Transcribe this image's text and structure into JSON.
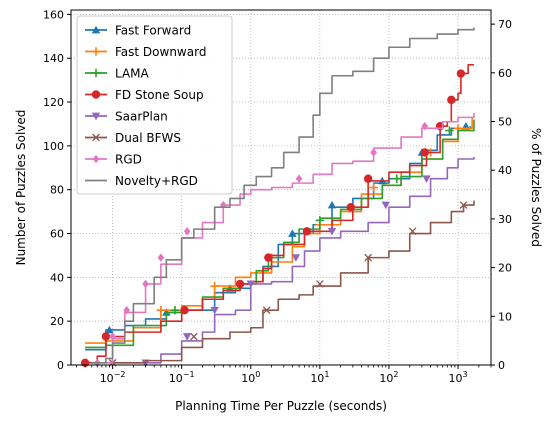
{
  "chart_data": {
    "type": "line",
    "xlabel": "Planning Time Per Puzzle (seconds)",
    "ylabel": "Number of Puzzles Solved",
    "ylabel_right": "% of Puzzles Solved",
    "x_scale": "log",
    "xlim": [
      0.0025,
      3000
    ],
    "ylim": [
      0,
      162
    ],
    "ylim_right": [
      0,
      72.9
    ],
    "grid": true,
    "legend_position": "top-left",
    "x_ticks": [
      {
        "value": 0.01,
        "base": "10",
        "exp": "−2"
      },
      {
        "value": 0.1,
        "base": "10",
        "exp": "−1"
      },
      {
        "value": 1,
        "base": "10",
        "exp": "0"
      },
      {
        "value": 10,
        "base": "10",
        "exp": "1"
      },
      {
        "value": 100,
        "base": "10",
        "exp": "2"
      },
      {
        "value": 1000,
        "base": "10",
        "exp": "3"
      }
    ],
    "y_ticks": [
      "0",
      "20",
      "40",
      "60",
      "80",
      "100",
      "120",
      "140",
      "160"
    ],
    "y_ticks_right": [
      "0",
      "10",
      "20",
      "30",
      "40",
      "50",
      "60",
      "70"
    ],
    "series": [
      {
        "name": "Fast Forward",
        "color": "#1f77b4",
        "marker": "triangle-up",
        "points": [
          [
            0.004,
            7
          ],
          [
            0.008,
            16
          ],
          [
            0.015,
            18
          ],
          [
            0.03,
            21
          ],
          [
            0.06,
            24
          ],
          [
            0.1,
            25
          ],
          [
            0.3,
            33
          ],
          [
            0.6,
            35
          ],
          [
            1.0,
            38
          ],
          [
            1.5,
            45
          ],
          [
            2.5,
            55
          ],
          [
            4,
            60
          ],
          [
            8,
            64
          ],
          [
            15,
            72
          ],
          [
            30,
            76
          ],
          [
            60,
            83
          ],
          [
            100,
            85
          ],
          [
            200,
            92
          ],
          [
            300,
            98
          ],
          [
            500,
            105
          ],
          [
            800,
            108
          ],
          [
            1500,
            109
          ]
        ],
        "markers": [
          [
            0.009,
            16
          ],
          [
            0.06,
            24
          ],
          [
            0.5,
            35
          ],
          [
            4,
            60
          ],
          [
            15,
            73
          ],
          [
            80,
            84
          ],
          [
            300,
            97
          ],
          [
            1300,
            109
          ]
        ]
      },
      {
        "name": "Fast Downward",
        "color": "#ff7f0e",
        "marker": "plus",
        "points": [
          [
            0.004,
            10
          ],
          [
            0.008,
            11
          ],
          [
            0.02,
            17
          ],
          [
            0.05,
            25
          ],
          [
            0.1,
            27
          ],
          [
            0.2,
            30
          ],
          [
            0.3,
            36
          ],
          [
            0.6,
            40
          ],
          [
            1.0,
            42
          ],
          [
            2,
            47
          ],
          [
            4,
            54
          ],
          [
            6,
            60
          ],
          [
            10,
            64
          ],
          [
            20,
            70
          ],
          [
            40,
            78
          ],
          [
            80,
            82
          ],
          [
            150,
            88
          ],
          [
            300,
            94
          ],
          [
            600,
            102
          ],
          [
            1000,
            108
          ],
          [
            1600,
            113
          ]
        ],
        "markers": [
          [
            0.05,
            25
          ],
          [
            0.3,
            36
          ],
          [
            2,
            49
          ],
          [
            10,
            64
          ],
          [
            60,
            81
          ],
          [
            400,
            97
          ],
          [
            1000,
            108
          ]
        ]
      },
      {
        "name": "LAMA",
        "color": "#2ca02c",
        "marker": "plus",
        "points": [
          [
            0.004,
            8
          ],
          [
            0.008,
            9
          ],
          [
            0.02,
            18
          ],
          [
            0.06,
            24
          ],
          [
            0.1,
            25
          ],
          [
            0.2,
            31
          ],
          [
            0.4,
            35
          ],
          [
            0.7,
            37
          ],
          [
            1.2,
            43
          ],
          [
            1.8,
            49
          ],
          [
            3,
            56
          ],
          [
            5,
            62
          ],
          [
            10,
            67
          ],
          [
            20,
            71
          ],
          [
            40,
            76
          ],
          [
            80,
            82
          ],
          [
            150,
            86
          ],
          [
            300,
            94
          ],
          [
            600,
            103
          ],
          [
            1000,
            107
          ],
          [
            1700,
            112
          ]
        ],
        "markers": [
          [
            0.08,
            25
          ],
          [
            1.8,
            49
          ],
          [
            10,
            66
          ],
          [
            130,
            85
          ],
          [
            750,
            107
          ]
        ]
      },
      {
        "name": "FD Stone Soup",
        "color": "#d62728",
        "marker": "circle",
        "points": [
          [
            0.004,
            1
          ],
          [
            0.006,
            4
          ],
          [
            0.008,
            13
          ],
          [
            0.015,
            15
          ],
          [
            0.05,
            20
          ],
          [
            0.1,
            25
          ],
          [
            0.2,
            30
          ],
          [
            0.4,
            34
          ],
          [
            0.7,
            37
          ],
          [
            1.0,
            38
          ],
          [
            1.5,
            44
          ],
          [
            2.0,
            50
          ],
          [
            3,
            55
          ],
          [
            6,
            61
          ],
          [
            15,
            66
          ],
          [
            30,
            72
          ],
          [
            50,
            84
          ],
          [
            100,
            88
          ],
          [
            200,
            91
          ],
          [
            350,
            97
          ],
          [
            550,
            109
          ],
          [
            700,
            111
          ],
          [
            800,
            121
          ],
          [
            1000,
            124
          ],
          [
            1100,
            133
          ],
          [
            1400,
            137
          ],
          [
            1700,
            137
          ]
        ],
        "markers": [
          [
            0.004,
            1
          ],
          [
            0.008,
            13
          ],
          [
            0.11,
            25
          ],
          [
            0.7,
            37
          ],
          [
            1.8,
            49
          ],
          [
            6.5,
            61
          ],
          [
            28,
            72
          ],
          [
            50,
            85
          ],
          [
            330,
            97
          ],
          [
            550,
            109
          ],
          [
            800,
            121
          ],
          [
            1100,
            133
          ]
        ]
      },
      {
        "name": "SaarPlan",
        "color": "#9467bd",
        "marker": "triangle-down",
        "points": [
          [
            0.005,
            1
          ],
          [
            0.03,
            1
          ],
          [
            0.05,
            5
          ],
          [
            0.1,
            11
          ],
          [
            0.2,
            15
          ],
          [
            0.3,
            23
          ],
          [
            0.6,
            25
          ],
          [
            1.0,
            37
          ],
          [
            2,
            38
          ],
          [
            4,
            45
          ],
          [
            6,
            52
          ],
          [
            10,
            58
          ],
          [
            20,
            61
          ],
          [
            50,
            65
          ],
          [
            100,
            72
          ],
          [
            200,
            77
          ],
          [
            400,
            85
          ],
          [
            700,
            90
          ],
          [
            1000,
            94
          ],
          [
            1700,
            95
          ]
        ],
        "markers": [
          [
            0.03,
            1
          ],
          [
            0.12,
            13
          ],
          [
            0.3,
            25
          ],
          [
            1,
            37
          ],
          [
            4.5,
            49
          ],
          [
            15,
            61
          ],
          [
            90,
            73
          ],
          [
            350,
            85
          ]
        ]
      },
      {
        "name": "Dual BFWS",
        "color": "#8c564b",
        "marker": "x",
        "points": [
          [
            0.01,
            1
          ],
          [
            0.03,
            2
          ],
          [
            0.1,
            8
          ],
          [
            0.2,
            12
          ],
          [
            0.5,
            15
          ],
          [
            1.0,
            17
          ],
          [
            1.5,
            25
          ],
          [
            2.5,
            30
          ],
          [
            5,
            32
          ],
          [
            8,
            36
          ],
          [
            20,
            42
          ],
          [
            50,
            49
          ],
          [
            100,
            52
          ],
          [
            200,
            60
          ],
          [
            400,
            65
          ],
          [
            800,
            70
          ],
          [
            1200,
            73
          ],
          [
            1700,
            75
          ]
        ],
        "markers": [
          [
            0.01,
            1
          ],
          [
            0.15,
            13
          ],
          [
            1.7,
            25
          ],
          [
            10,
            37
          ],
          [
            50,
            49
          ],
          [
            220,
            61
          ],
          [
            1200,
            73
          ]
        ]
      },
      {
        "name": "RGD",
        "color": "#e377c2",
        "marker": "diamond",
        "points": [
          [
            0.005,
            1
          ],
          [
            0.01,
            12
          ],
          [
            0.015,
            24
          ],
          [
            0.03,
            37
          ],
          [
            0.05,
            46
          ],
          [
            0.1,
            58
          ],
          [
            0.2,
            65
          ],
          [
            0.4,
            73
          ],
          [
            0.7,
            78
          ],
          [
            1.0,
            80
          ],
          [
            2,
            81
          ],
          [
            4,
            83
          ],
          [
            8,
            87
          ],
          [
            15,
            92
          ],
          [
            30,
            93
          ],
          [
            60,
            99
          ],
          [
            150,
            104
          ],
          [
            300,
            108
          ],
          [
            600,
            111
          ],
          [
            1000,
            113
          ],
          [
            1700,
            115
          ]
        ],
        "markers": [
          [
            0.006,
            1
          ],
          [
            0.01,
            13
          ],
          [
            0.016,
            25
          ],
          [
            0.03,
            37
          ],
          [
            0.05,
            49
          ],
          [
            0.12,
            61
          ],
          [
            0.4,
            73
          ],
          [
            5,
            85
          ],
          [
            60,
            97
          ],
          [
            330,
            109
          ]
        ]
      },
      {
        "name": "Novelty+RGD",
        "color": "#7f7f7f",
        "marker": "none",
        "points": [
          [
            0.005,
            1
          ],
          [
            0.008,
            3
          ],
          [
            0.01,
            10
          ],
          [
            0.015,
            20
          ],
          [
            0.02,
            28
          ],
          [
            0.04,
            40
          ],
          [
            0.06,
            48
          ],
          [
            0.1,
            58
          ],
          [
            0.15,
            62
          ],
          [
            0.3,
            72
          ],
          [
            0.5,
            76
          ],
          [
            0.8,
            82
          ],
          [
            1.2,
            86
          ],
          [
            2,
            90
          ],
          [
            3,
            97
          ],
          [
            5,
            104
          ],
          [
            8,
            114
          ],
          [
            10,
            124
          ],
          [
            15,
            132
          ],
          [
            30,
            134
          ],
          [
            60,
            140
          ],
          [
            100,
            145
          ],
          [
            200,
            149
          ],
          [
            500,
            151
          ],
          [
            1000,
            153
          ],
          [
            1700,
            154
          ]
        ],
        "markers": []
      }
    ]
  }
}
